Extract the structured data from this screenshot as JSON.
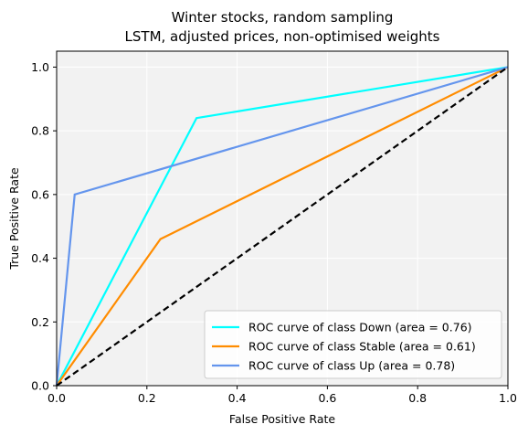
{
  "chart_data": {
    "type": "line",
    "title": "Winter stocks, random sampling",
    "subtitle": "LSTM, adjusted prices, non-optimised weights",
    "xlabel": "False Positive Rate",
    "ylabel": "True Positive Rate",
    "xlim": [
      0,
      1
    ],
    "ylim": [
      0,
      1.05
    ],
    "xticks": [
      "0.0",
      "0.2",
      "0.4",
      "0.6",
      "0.8",
      "1.0"
    ],
    "yticks": [
      "0.0",
      "0.2",
      "0.4",
      "0.6",
      "0.8",
      "1.0"
    ],
    "grid": true,
    "legend_position": "lower-right",
    "series": [
      {
        "name": "ROC curve of class Down (area = 0.76)",
        "color": "#00ffff",
        "x": [
          0,
          0.31,
          1
        ],
        "y": [
          0,
          0.84,
          1
        ]
      },
      {
        "name": "ROC curve of class Stable (area = 0.61)",
        "color": "#ff8c00",
        "x": [
          0,
          0.23,
          1
        ],
        "y": [
          0,
          0.46,
          1
        ]
      },
      {
        "name": "ROC curve of class Up (area = 0.78)",
        "color": "#6495ed",
        "x": [
          0,
          0.04,
          1
        ],
        "y": [
          0,
          0.6,
          1
        ]
      }
    ],
    "reference_line": {
      "style": "dashed",
      "color": "#000000",
      "x": [
        0,
        1
      ],
      "y": [
        0,
        1
      ]
    }
  }
}
